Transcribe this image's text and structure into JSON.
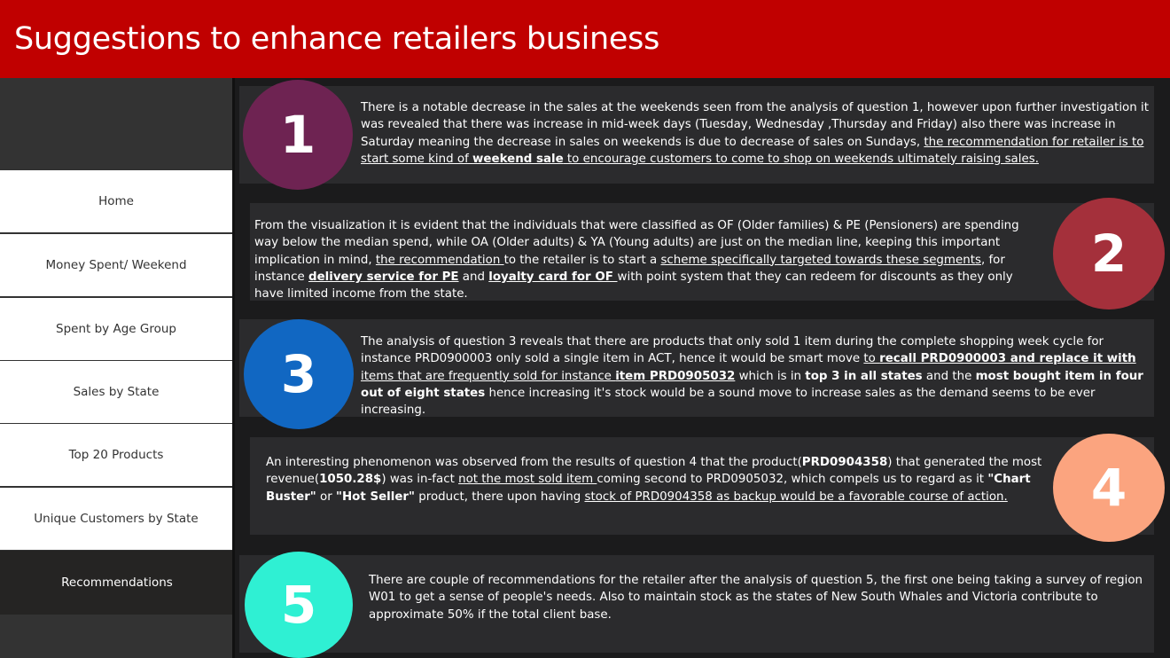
{
  "header": {
    "title": "Suggestions to enhance retailers business"
  },
  "nav": {
    "items": [
      {
        "label": "Home"
      },
      {
        "label": "Money Spent/ Weekend"
      },
      {
        "label": "Spent by Age Group"
      },
      {
        "label": "Sales by State"
      },
      {
        "label": "Top 20 Products"
      },
      {
        "label": "Unique Customers by State"
      },
      {
        "label": "Recommendations"
      }
    ]
  },
  "colors": {
    "header_bg": "#c00000",
    "circle1": "#6e2352",
    "circle2": "#a4303b",
    "circle3": "#1167c2",
    "circle4": "#fba47f",
    "circle5": "#2ff0d3"
  },
  "cards": [
    {
      "number": "1",
      "t1": "There is a notable decrease in the sales at the weekends seen from the analysis of question 1, however upon further investigation it was revealed that there was increase in mid-week days (Tuesday, Wednesday ,Thursday and Friday) also there was increase in Saturday meaning the decrease in sales on weekends is due to decrease of sales on Sundays, ",
      "u1": "the recommendation for retailer is to start some kind of ",
      "b1": "weekend sale",
      "u2": " to encourage customers to come to shop on weekends ultimately raising sales."
    },
    {
      "number": "2",
      "t1": "From the visualization it is evident that the individuals that were classified as OF (Older families) & PE (Pensioners) are spending way below the median spend, while  OA (Older adults) & YA (Young adults) are just on the median line, keeping this important implication in mind, ",
      "u1": "the recommendation ",
      "t2": "to the retailer is to start a ",
      "u2": "scheme specifically targeted towards these segments",
      "t3": ", for instance ",
      "b1": "delivery service for PE",
      "t4": " and ",
      "b2": "loyalty card for OF ",
      "t5": "with point system that they can redeem for discounts as they only have limited income from the state."
    },
    {
      "number": "3",
      "t1": "The analysis of question 3 reveals that there are products that only sold 1 item during the complete shopping week cycle for instance PRD0900003 only sold a single item in ACT, hence it would be smart move ",
      "u1": "to ",
      "b1": "recall PRD0900003 and replace it with ",
      "u2": "items that are frequently sold for instance ",
      "b2": "item PRD0905032",
      "t2": " which is in ",
      "b3": "top 3 in all states",
      "t3": " and the ",
      "b4": "most bought item in four out of eight states",
      "t4": " hence increasing it's stock would be a sound move to increase sales as the demand seems to be ever increasing."
    },
    {
      "number": "4",
      "t1": "An interesting phenomenon was observed from the results of question 4 that the product(",
      "b1": "PRD0904358",
      "t2": ") that generated the most revenue(",
      "b2": "1050.28$",
      "t3": ") was in-fact ",
      "u1": "not the most sold item ",
      "t4": "coming second to PRD0905032, which compels us to regard as it ",
      "b3": "\"Chart Buster\"",
      "t5": " or ",
      "b4": "\"Hot Seller\"",
      "t6": " product, there upon having ",
      "u2": "stock of PRD0904358 as backup would be a favorable course of action."
    },
    {
      "number": "5",
      "t1": "There are couple of recommendations for the retailer after the analysis of question 5, the first one being taking a survey of region W01 to get a sense of people's needs. Also to maintain stock as the states of New South Whales and Victoria contribute to approximate 50% if the total client base."
    }
  ]
}
